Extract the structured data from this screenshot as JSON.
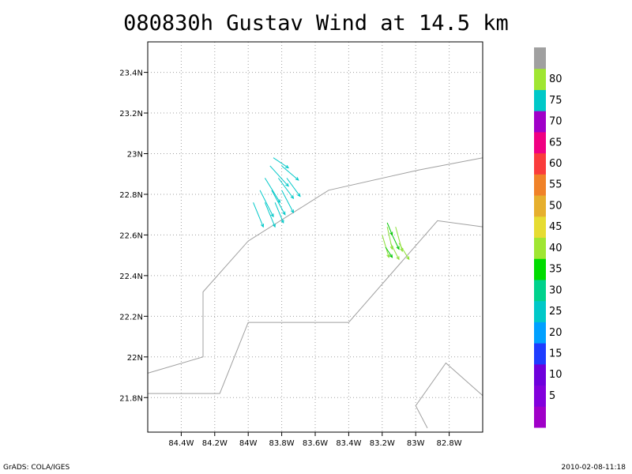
{
  "title": "080830h Gustav Wind at 14.5 km",
  "footer": {
    "left": "GrADS: COLA/IGES",
    "right": "2010-02-08-11:18"
  },
  "chart_data": {
    "type": "vector-map",
    "title": "080830h Gustav Wind at 14.5 km",
    "xlim": [
      -84.6,
      -82.6
    ],
    "ylim": [
      21.63,
      23.55
    ],
    "grid": true,
    "xticks": [
      {
        "value": -84.4,
        "label": "84.4W"
      },
      {
        "value": -84.2,
        "label": "84.2W"
      },
      {
        "value": -84.0,
        "label": "84W"
      },
      {
        "value": -83.8,
        "label": "83.8W"
      },
      {
        "value": -83.6,
        "label": "83.6W"
      },
      {
        "value": -83.4,
        "label": "83.4W"
      },
      {
        "value": -83.2,
        "label": "83.2W"
      },
      {
        "value": -83.0,
        "label": "83W"
      },
      {
        "value": -82.8,
        "label": "82.8W"
      }
    ],
    "yticks": [
      {
        "value": 21.8,
        "label": "21.8N"
      },
      {
        "value": 22.0,
        "label": "22N"
      },
      {
        "value": 22.2,
        "label": "22.2N"
      },
      {
        "value": 22.4,
        "label": "22.4N"
      },
      {
        "value": 22.6,
        "label": "22.6N"
      },
      {
        "value": 22.8,
        "label": "22.8N"
      },
      {
        "value": 23.0,
        "label": "23N"
      },
      {
        "value": 23.2,
        "label": "23.2N"
      },
      {
        "value": 23.4,
        "label": "23.4N"
      }
    ],
    "coastlines": [
      [
        [
          -84.6,
          21.92
        ],
        [
          -84.27,
          22.0
        ],
        [
          -84.27,
          22.32
        ],
        [
          -84.0,
          22.57
        ],
        [
          -83.52,
          22.82
        ],
        [
          -82.98,
          22.92
        ],
        [
          -82.6,
          22.98
        ]
      ],
      [
        [
          -84.6,
          21.82
        ],
        [
          -84.17,
          21.82
        ],
        [
          -84.0,
          22.17
        ],
        [
          -83.4,
          22.17
        ],
        [
          -82.87,
          22.67
        ],
        [
          -82.6,
          22.64
        ]
      ],
      [
        [
          -82.6,
          21.81
        ],
        [
          -82.82,
          21.97
        ],
        [
          -83.0,
          21.76
        ],
        [
          -82.93,
          21.65
        ]
      ]
    ],
    "vectors": [
      {
        "lon": -83.85,
        "lat": 22.98,
        "u": 0.09,
        "v": -0.05,
        "speed": 72,
        "color": "#00c8c8"
      },
      {
        "lon": -83.87,
        "lat": 22.94,
        "u": 0.11,
        "v": -0.1,
        "speed": 72,
        "color": "#00c8c8"
      },
      {
        "lon": -83.9,
        "lat": 22.88,
        "u": 0.09,
        "v": -0.12,
        "speed": 72,
        "color": "#00c8c8"
      },
      {
        "lon": -83.93,
        "lat": 22.82,
        "u": 0.08,
        "v": -0.13,
        "speed": 72,
        "color": "#00c8c8"
      },
      {
        "lon": -83.97,
        "lat": 22.76,
        "u": 0.06,
        "v": -0.12,
        "speed": 72,
        "color": "#00c8c8"
      },
      {
        "lon": -83.8,
        "lat": 22.94,
        "u": 0.1,
        "v": -0.07,
        "speed": 72,
        "color": "#00c8c8"
      },
      {
        "lon": -83.82,
        "lat": 22.88,
        "u": 0.09,
        "v": -0.1,
        "speed": 72,
        "color": "#00c8c8"
      },
      {
        "lon": -83.86,
        "lat": 22.82,
        "u": 0.08,
        "v": -0.12,
        "speed": 72,
        "color": "#00c8c8"
      },
      {
        "lon": -83.9,
        "lat": 22.76,
        "u": 0.06,
        "v": -0.12,
        "speed": 72,
        "color": "#00c8c8"
      },
      {
        "lon": -83.77,
        "lat": 22.88,
        "u": 0.08,
        "v": -0.09,
        "speed": 72,
        "color": "#00c8c8"
      },
      {
        "lon": -83.8,
        "lat": 22.82,
        "u": 0.07,
        "v": -0.11,
        "speed": 72,
        "color": "#00c8c8"
      },
      {
        "lon": -83.84,
        "lat": 22.76,
        "u": 0.05,
        "v": -0.1,
        "speed": 72,
        "color": "#00c8c8"
      },
      {
        "lon": -83.17,
        "lat": 22.64,
        "u": 0.03,
        "v": -0.11,
        "speed": 37,
        "color": "#8ce038"
      },
      {
        "lon": -83.2,
        "lat": 22.6,
        "u": 0.04,
        "v": -0.11,
        "speed": 37,
        "color": "#8ce038"
      },
      {
        "lon": -83.12,
        "lat": 22.64,
        "u": 0.04,
        "v": -0.12,
        "speed": 37,
        "color": "#8ce038"
      },
      {
        "lon": -83.15,
        "lat": 22.56,
        "u": 0.05,
        "v": -0.08,
        "speed": 37,
        "color": "#8ce038"
      },
      {
        "lon": -83.1,
        "lat": 22.56,
        "u": 0.06,
        "v": -0.08,
        "speed": 37,
        "color": "#8ce038"
      },
      {
        "lon": -83.17,
        "lat": 22.66,
        "u": 0.03,
        "v": -0.06,
        "speed": 32,
        "color": "#00c800"
      },
      {
        "lon": -83.14,
        "lat": 22.6,
        "u": 0.04,
        "v": -0.07,
        "speed": 32,
        "color": "#00c800"
      },
      {
        "lon": -83.18,
        "lat": 22.54,
        "u": 0.04,
        "v": -0.05,
        "speed": 32,
        "color": "#00c800"
      }
    ],
    "colorbar": {
      "bins": [
        {
          "color": "#a000c8",
          "label": ""
        },
        {
          "color": "#8200dc",
          "label": "5"
        },
        {
          "color": "#6e00dc",
          "label": "10"
        },
        {
          "color": "#1e3cff",
          "label": "15"
        },
        {
          "color": "#00a0ff",
          "label": "20"
        },
        {
          "color": "#00c8c8",
          "label": "25"
        },
        {
          "color": "#00d28c",
          "label": "30"
        },
        {
          "color": "#00dc00",
          "label": "35"
        },
        {
          "color": "#a0e632",
          "label": "40"
        },
        {
          "color": "#e6dc32",
          "label": "45"
        },
        {
          "color": "#e6af2d",
          "label": "50"
        },
        {
          "color": "#f08228",
          "label": "55"
        },
        {
          "color": "#fa3c3c",
          "label": "60"
        },
        {
          "color": "#f00082",
          "label": "65"
        },
        {
          "color": "#a000c8",
          "label": "70"
        },
        {
          "color": "#00c8c8",
          "label": "75"
        },
        {
          "color": "#a0e632",
          "label": "80"
        },
        {
          "color": "#a0a0a0",
          "label": ""
        }
      ]
    }
  }
}
